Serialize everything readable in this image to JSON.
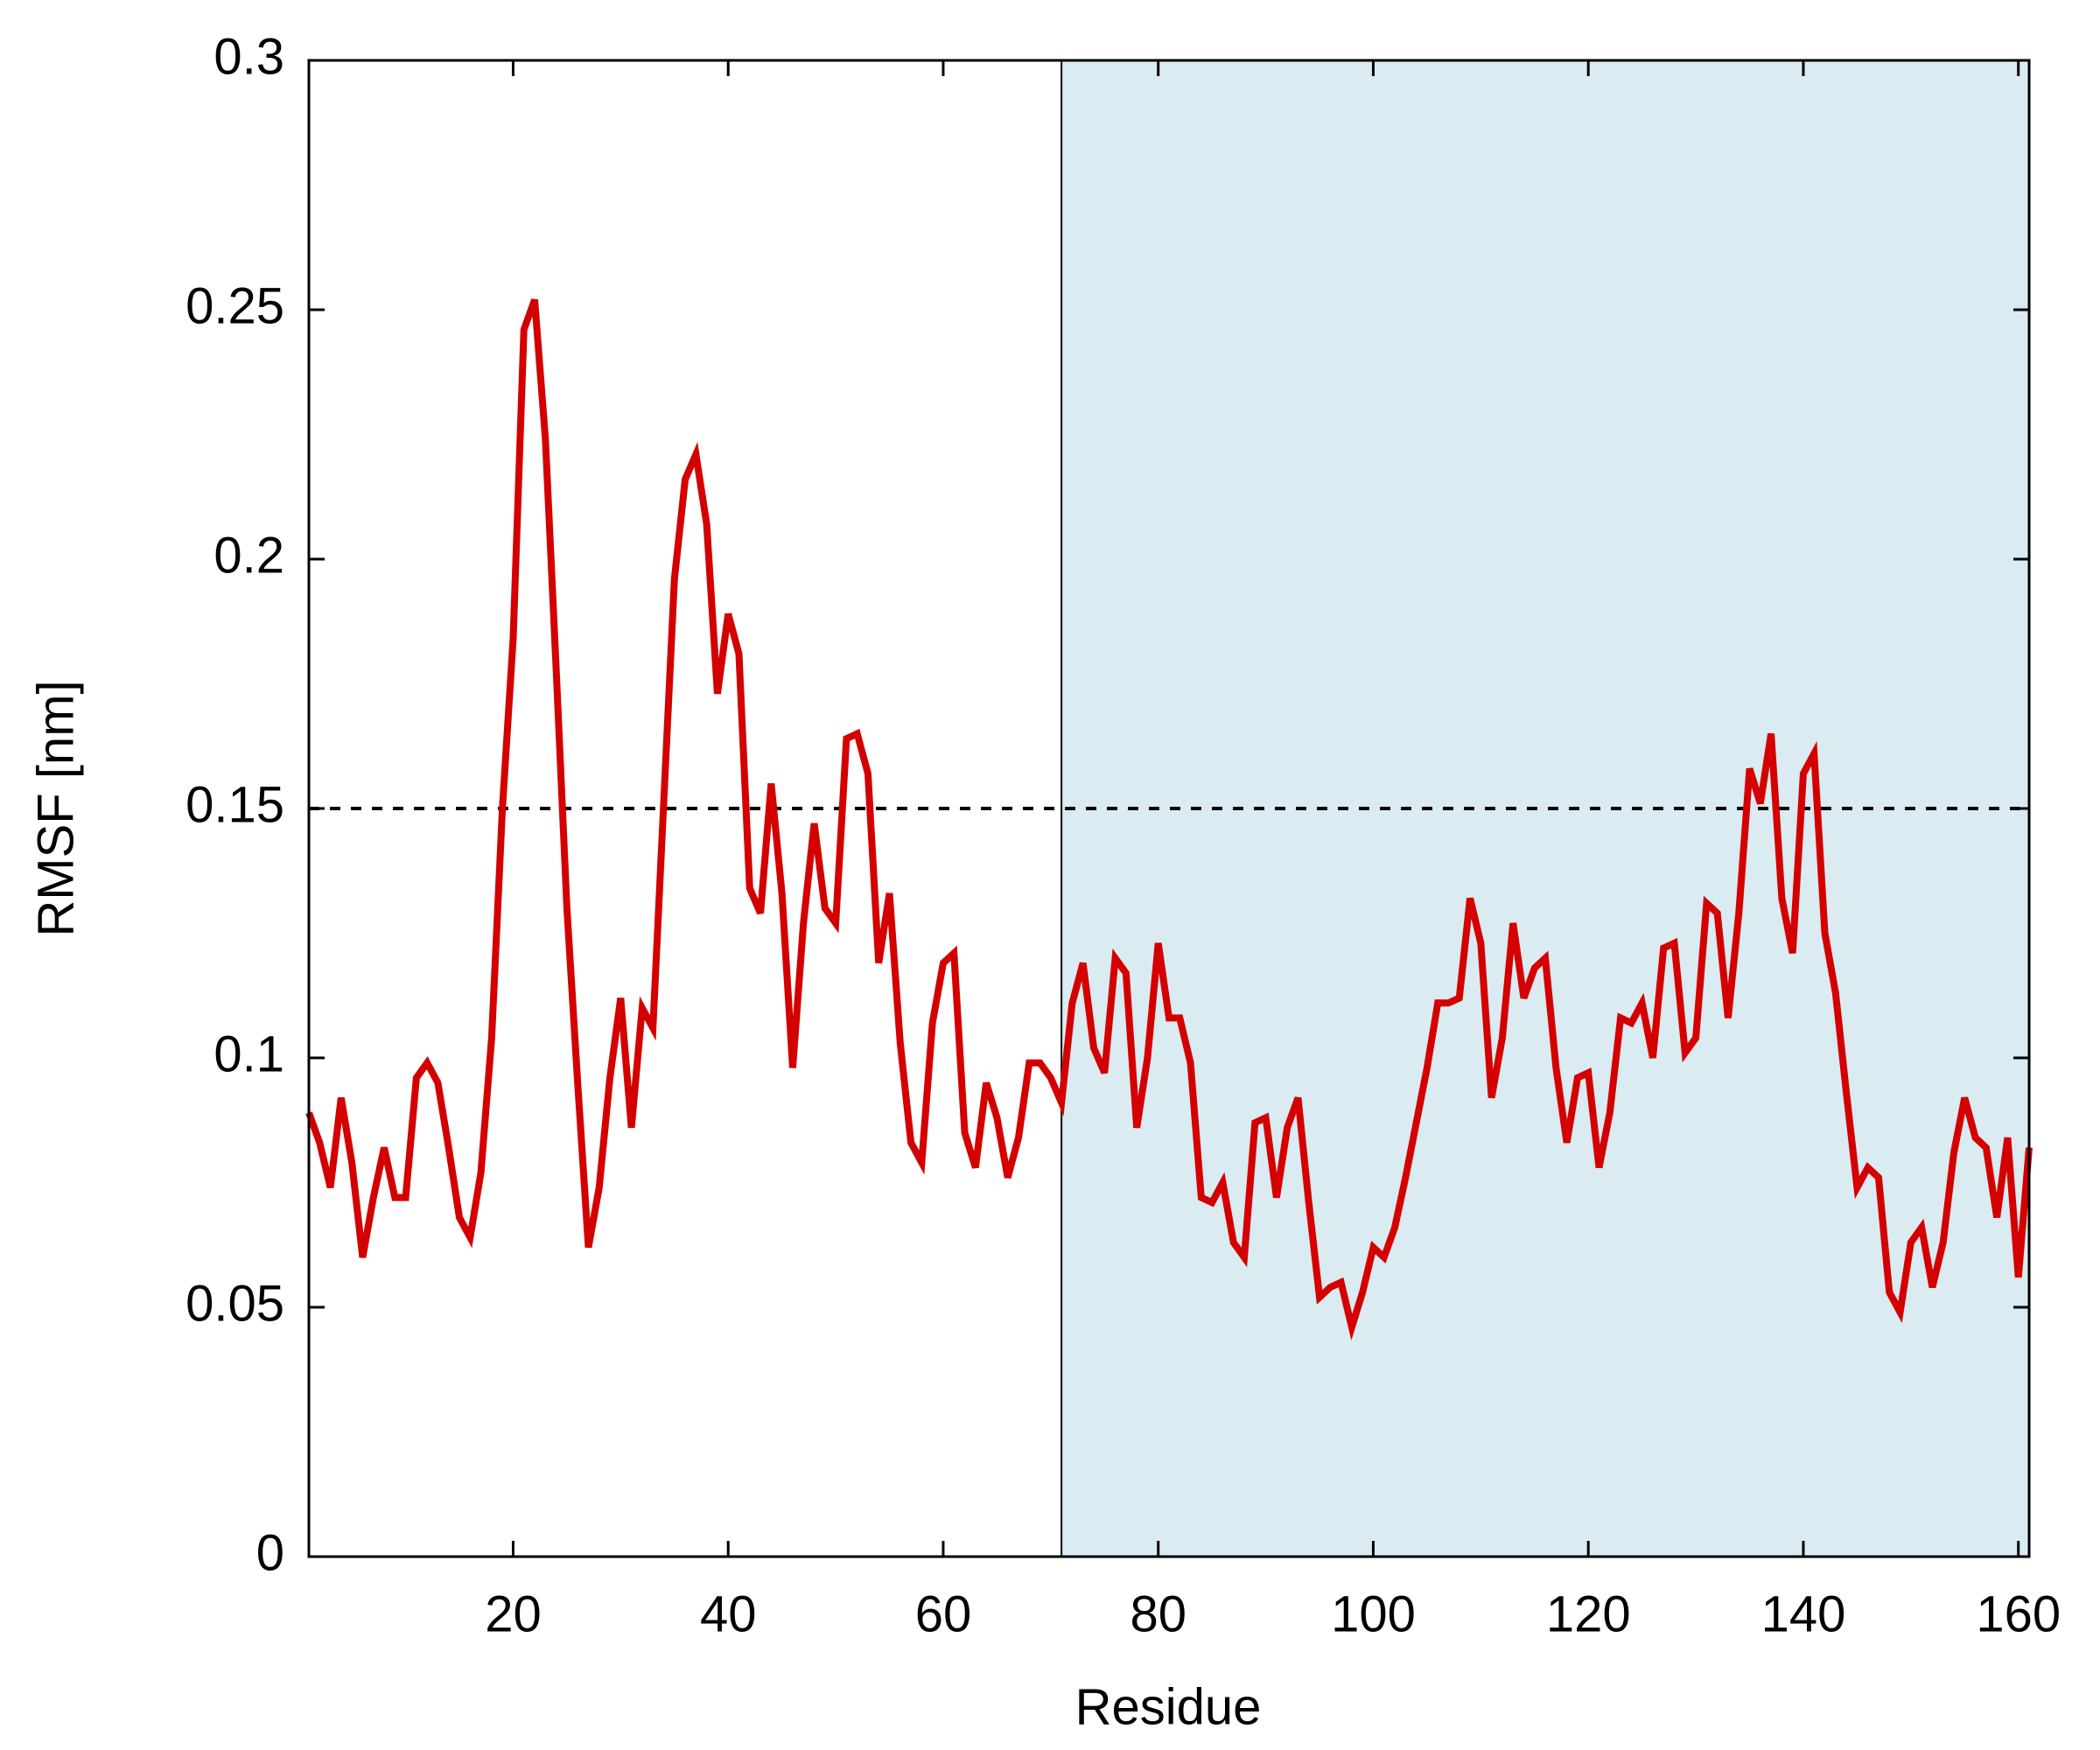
{
  "chart_data": {
    "type": "line",
    "xlabel": "Residue",
    "ylabel": "RMSF [nm]",
    "xlim": [
      1,
      161
    ],
    "ylim": [
      0,
      0.3
    ],
    "xticks": [
      20,
      40,
      60,
      80,
      100,
      120,
      140,
      160
    ],
    "yticks": [
      0,
      0.05,
      0.1,
      0.15,
      0.2,
      0.25,
      0.3
    ],
    "threshold": 0.15,
    "shaded_from": 71,
    "shade_color": "#daebf2",
    "x": [
      1,
      2,
      3,
      4,
      5,
      6,
      7,
      8,
      9,
      10,
      11,
      12,
      13,
      14,
      15,
      16,
      17,
      18,
      19,
      20,
      21,
      22,
      23,
      24,
      25,
      26,
      27,
      28,
      29,
      30,
      31,
      32,
      33,
      34,
      35,
      36,
      37,
      38,
      39,
      40,
      41,
      42,
      43,
      44,
      45,
      46,
      47,
      48,
      49,
      50,
      51,
      52,
      53,
      54,
      55,
      56,
      57,
      58,
      59,
      60,
      61,
      62,
      63,
      64,
      65,
      66,
      67,
      68,
      69,
      70,
      71,
      72,
      73,
      74,
      75,
      76,
      77,
      78,
      79,
      80,
      81,
      82,
      83,
      84,
      85,
      86,
      87,
      88,
      89,
      90,
      91,
      92,
      93,
      94,
      95,
      96,
      97,
      98,
      99,
      100,
      101,
      102,
      103,
      104,
      105,
      106,
      107,
      108,
      109,
      110,
      111,
      112,
      113,
      114,
      115,
      116,
      117,
      118,
      119,
      120,
      121,
      122,
      123,
      124,
      125,
      126,
      127,
      128,
      129,
      130,
      131,
      132,
      133,
      134,
      135,
      136,
      137,
      138,
      139,
      140,
      141,
      142,
      143,
      144,
      145,
      146,
      147,
      148,
      149,
      150,
      151,
      152,
      153,
      154,
      155,
      156,
      157,
      158,
      159,
      160,
      161
    ],
    "series": [
      {
        "name": "RMSF",
        "color": "#d40000",
        "values": [
          0.089,
          0.083,
          0.074,
          0.092,
          0.079,
          0.06,
          0.072,
          0.082,
          0.072,
          0.072,
          0.096,
          0.099,
          0.095,
          0.082,
          0.068,
          0.064,
          0.077,
          0.104,
          0.15,
          0.184,
          0.246,
          0.252,
          0.224,
          0.178,
          0.13,
          0.095,
          0.062,
          0.074,
          0.096,
          0.112,
          0.086,
          0.11,
          0.106,
          0.151,
          0.196,
          0.216,
          0.221,
          0.207,
          0.173,
          0.189,
          0.181,
          0.134,
          0.129,
          0.155,
          0.133,
          0.098,
          0.127,
          0.147,
          0.13,
          0.127,
          0.164,
          0.165,
          0.157,
          0.119,
          0.133,
          0.103,
          0.083,
          0.079,
          0.107,
          0.119,
          0.121,
          0.085,
          0.078,
          0.095,
          0.088,
          0.076,
          0.084,
          0.099,
          0.099,
          0.096,
          0.091,
          0.111,
          0.119,
          0.102,
          0.097,
          0.12,
          0.117,
          0.086,
          0.1,
          0.123,
          0.108,
          0.108,
          0.099,
          0.072,
          0.071,
          0.075,
          0.063,
          0.06,
          0.087,
          0.088,
          0.072,
          0.086,
          0.092,
          0.071,
          0.052,
          0.054,
          0.055,
          0.046,
          0.053,
          0.062,
          0.06,
          0.066,
          0.076,
          0.087,
          0.098,
          0.111,
          0.111,
          0.112,
          0.132,
          0.123,
          0.092,
          0.104,
          0.127,
          0.112,
          0.118,
          0.12,
          0.098,
          0.083,
          0.096,
          0.097,
          0.078,
          0.089,
          0.108,
          0.107,
          0.111,
          0.1,
          0.122,
          0.123,
          0.101,
          0.104,
          0.131,
          0.129,
          0.108,
          0.129,
          0.158,
          0.151,
          0.165,
          0.132,
          0.121,
          0.157,
          0.161,
          0.125,
          0.113,
          0.093,
          0.074,
          0.078,
          0.076,
          0.053,
          0.049,
          0.063,
          0.066,
          0.054,
          0.063,
          0.081,
          0.092,
          0.084,
          0.082,
          0.068,
          0.084,
          0.056,
          0.082
        ]
      }
    ]
  }
}
